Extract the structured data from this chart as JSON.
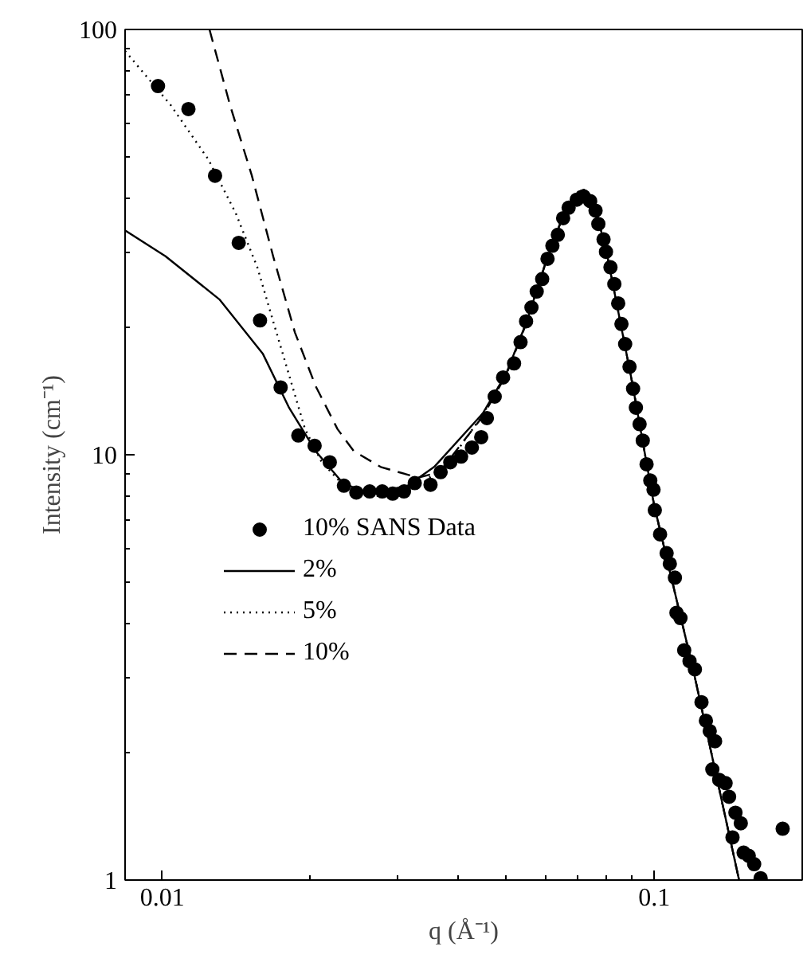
{
  "chart_data": {
    "type": "scatter",
    "xlabel": "q (Å⁻¹)",
    "ylabel": "Intensity (cm⁻¹)",
    "log": "xy",
    "grid": false,
    "legend": "left",
    "xlim": [
      0.0084,
      0.2
    ],
    "ylim": [
      1,
      100
    ],
    "xticks": [
      0.01,
      0.1,
      {
        "value": 0.02,
        "label": null
      },
      {
        "value": 0.03,
        "label": null
      },
      {
        "value": 0.04,
        "label": null
      },
      {
        "value": 0.05,
        "label": null
      },
      {
        "value": 0.06,
        "label": null
      },
      {
        "value": 0.07,
        "label": null
      },
      {
        "value": 0.08,
        "label": null
      },
      {
        "value": 0.09,
        "label": null
      },
      {
        "value": 0.2,
        "label": null
      }
    ],
    "yticks": [
      1,
      10,
      100,
      {
        "value": 2,
        "label": null
      },
      {
        "value": 3,
        "label": null
      },
      {
        "value": 4,
        "label": null
      },
      {
        "value": 5,
        "label": null
      },
      {
        "value": 6,
        "label": null
      },
      {
        "value": 7,
        "label": null
      },
      {
        "value": 8,
        "label": null
      },
      {
        "value": 9,
        "label": null
      },
      {
        "value": 20,
        "label": null
      },
      {
        "value": 30,
        "label": null
      },
      {
        "value": 40,
        "label": null
      },
      {
        "value": 50,
        "label": null
      },
      {
        "value": 60,
        "label": null
      },
      {
        "value": 70,
        "label": null
      },
      {
        "value": 80,
        "label": null
      },
      {
        "value": 90,
        "label": null
      }
    ],
    "series": [
      {
        "name": "10% SANS Data",
        "marker": "circle",
        "color": "#000000",
        "x": [
          0.0098,
          0.0113,
          0.0128,
          0.0143,
          0.0158,
          0.0174,
          0.0189,
          0.0204,
          0.0219,
          0.0234,
          0.0248,
          0.0264,
          0.028,
          0.0294,
          0.031,
          0.0326,
          0.0351,
          0.0368,
          0.0385,
          0.0405,
          0.0426,
          0.0445,
          0.0457,
          0.0474,
          0.0493,
          0.0519,
          0.0535,
          0.0549,
          0.0563,
          0.0577,
          0.0592,
          0.0607,
          0.0621,
          0.0637,
          0.0653,
          0.067,
          0.0696,
          0.0719,
          0.0741,
          0.076,
          0.077,
          0.0789,
          0.0798,
          0.0815,
          0.083,
          0.0845,
          0.0858,
          0.0873,
          0.0891,
          0.0906,
          0.0918,
          0.0934,
          0.0948,
          0.0965,
          0.0982,
          0.0997,
          0.1003,
          0.1028,
          0.106,
          0.1076,
          0.1102,
          0.111,
          0.1131,
          0.1151,
          0.118,
          0.121,
          0.1248,
          0.1274,
          0.1297,
          0.1313,
          0.133,
          0.1356,
          0.1397,
          0.142,
          0.1443,
          0.1463,
          0.15,
          0.152,
          0.1557,
          0.1597,
          0.1646,
          0.1825
        ],
        "values": [
          73.6,
          65.0,
          45.3,
          31.5,
          20.7,
          14.4,
          11.1,
          10.5,
          9.6,
          8.46,
          8.15,
          8.2,
          8.2,
          8.1,
          8.2,
          8.58,
          8.5,
          9.1,
          9.6,
          9.9,
          10.4,
          11.0,
          12.2,
          13.7,
          15.2,
          16.4,
          18.4,
          20.6,
          22.2,
          24.2,
          25.9,
          28.9,
          31.0,
          32.9,
          36.0,
          38.1,
          39.8,
          40.5,
          39.5,
          37.5,
          34.9,
          32.1,
          30.0,
          27.6,
          25.2,
          22.7,
          20.3,
          18.2,
          16.1,
          14.3,
          12.9,
          11.8,
          10.8,
          9.5,
          8.7,
          8.28,
          7.41,
          6.5,
          5.87,
          5.54,
          5.14,
          4.25,
          4.13,
          3.47,
          3.27,
          3.13,
          2.62,
          2.37,
          2.24,
          1.82,
          2.12,
          1.72,
          1.69,
          1.57,
          1.26,
          1.44,
          1.36,
          1.16,
          1.14,
          1.09,
          1.01,
          1.32
        ]
      },
      {
        "name": "2%",
        "type": "line",
        "line_style": "solid",
        "color": "#000000",
        "x": [
          0.0084,
          0.01015,
          0.01306,
          0.016,
          0.0181,
          0.0205,
          0.0233,
          0.0264,
          0.0315,
          0.0357,
          0.0448,
          0.05,
          0.055,
          0.06,
          0.065,
          0.07,
          0.072,
          0.075,
          0.08,
          0.09,
          0.1,
          0.12,
          0.1488
        ],
        "values": [
          33.7,
          29.3,
          23.2,
          17.3,
          12.9,
          10.2,
          8.57,
          8.1,
          8.45,
          9.36,
          12.5,
          15.5,
          20.5,
          28,
          36,
          41.5,
          42,
          40,
          30,
          15,
          7.6,
          3.13,
          1
        ]
      },
      {
        "name": "5%",
        "type": "line",
        "line_style": "dotted",
        "color": "#000000",
        "x": [
          0.0084,
          0.0104,
          0.0124,
          0.0141,
          0.0156,
          0.0168,
          0.0181,
          0.0195,
          0.0211,
          0.0233,
          0.0251,
          0.0285,
          0.0331,
          0.0385,
          0.0448,
          0.05,
          0.055,
          0.06,
          0.065,
          0.07,
          0.072,
          0.075,
          0.08,
          0.09,
          0.1,
          0.12,
          0.1488
        ],
        "values": [
          89,
          66.4,
          49.5,
          37,
          27.6,
          20.6,
          15.4,
          11.5,
          9.6,
          8.5,
          8.05,
          7.98,
          8.4,
          9.7,
          12.4,
          15.5,
          20.5,
          28,
          36,
          41.3,
          41.8,
          40,
          30,
          15,
          7.6,
          3.13,
          1
        ]
      },
      {
        "name": "10%",
        "type": "line",
        "line_style": "dashed",
        "color": "#000000",
        "x": [
          0.01247,
          0.01373,
          0.0152,
          0.0168,
          0.0186,
          0.0205,
          0.0227,
          0.0245,
          0.0278,
          0.0331,
          0.0366,
          0.0448,
          0.05,
          0.055,
          0.06,
          0.065,
          0.07,
          0.072,
          0.075,
          0.08,
          0.09,
          0.1,
          0.12,
          0.1488
        ],
        "values": [
          100,
          66.4,
          45.4,
          29.3,
          19.4,
          14.5,
          11.5,
          10.2,
          9.36,
          8.83,
          9.1,
          12.3,
          15.4,
          20.4,
          28,
          36,
          41.3,
          41.8,
          40,
          30,
          15,
          7.6,
          3.13,
          1
        ]
      }
    ]
  }
}
